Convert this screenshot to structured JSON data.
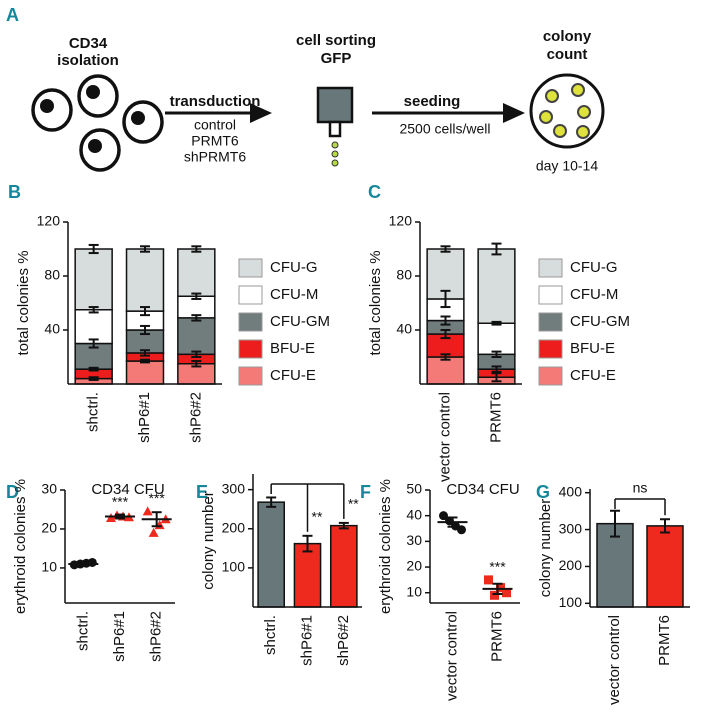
{
  "diagram": {
    "panel": "A",
    "isolation": [
      "CD34",
      "isolation"
    ],
    "transduction": "transduction",
    "conditions": [
      "control",
      "PRMT6",
      "shPRMT6"
    ],
    "sorting": [
      "cell sorting",
      "GFP"
    ],
    "seeding": "seeding",
    "density": "2500 cells/well",
    "count": [
      "colony",
      "count"
    ],
    "duration": "day 10-14"
  },
  "chart_data": [
    {
      "type": "stacked",
      "panel": "B",
      "y_label": "total colonies %",
      "categories": [
        "shctrl.",
        "shP6#1",
        "shP6#2"
      ],
      "ylim": [
        0,
        120
      ],
      "yticks": [
        40,
        80,
        120
      ],
      "series": [
        {
          "name": "CFU-E",
          "color": "#f47a78",
          "values": [
            4,
            17,
            15
          ],
          "errors": [
            1,
            1,
            2
          ]
        },
        {
          "name": "BFU-E",
          "color": "#ee1d1d",
          "values": [
            7,
            6,
            7
          ],
          "errors": [
            1,
            2,
            2
          ]
        },
        {
          "name": "CFU-GM",
          "color": "#717c7d",
          "values": [
            19,
            17,
            27
          ],
          "errors": [
            3,
            3,
            2
          ]
        },
        {
          "name": "CFU-M",
          "color": "#ffffff",
          "values": [
            25,
            14,
            16
          ],
          "errors": [
            2,
            3,
            2
          ]
        },
        {
          "name": "CFU-G",
          "color": "#d6dddc",
          "values": [
            45,
            46,
            35
          ],
          "errors": [
            3,
            2,
            2
          ]
        }
      ]
    },
    {
      "type": "stacked",
      "panel": "C",
      "y_label": "total colonies %",
      "categories": [
        "vector control",
        "PRMT6"
      ],
      "ylim": [
        0,
        120
      ],
      "yticks": [
        40,
        80,
        120
      ],
      "series": [
        {
          "name": "CFU-E",
          "color": "#f47a78",
          "values": [
            20,
            5
          ],
          "errors": [
            2,
            3
          ]
        },
        {
          "name": "BFU-E",
          "color": "#ee1d1d",
          "values": [
            17,
            6
          ],
          "errors": [
            3,
            2
          ]
        },
        {
          "name": "CFU-GM",
          "color": "#717c7d",
          "values": [
            10,
            11
          ],
          "errors": [
            3,
            2
          ]
        },
        {
          "name": "CFU-M",
          "color": "#ffffff",
          "values": [
            16,
            23
          ],
          "errors": [
            6,
            1
          ]
        },
        {
          "name": "CFU-G",
          "color": "#d6dddc",
          "values": [
            37,
            55
          ],
          "errors": [
            2,
            4
          ]
        }
      ]
    },
    {
      "type": "dot",
      "panel": "D",
      "title": "CD34 CFU",
      "y_label": "erythroid colonies %",
      "categories": [
        "shctrl.",
        "shP6#1",
        "shP6#2"
      ],
      "ylim": [
        1,
        30
      ],
      "yticks": [
        10,
        20,
        30
      ],
      "means": [
        11,
        23.2,
        22.5
      ],
      "errors": [
        0.3,
        0.5,
        1.8
      ],
      "points": [
        [
          10.8,
          11,
          11.2,
          11.4
        ],
        [
          22.8,
          23.5,
          23.2,
          23
        ],
        [
          24.5,
          19,
          21,
          22.5
        ]
      ],
      "colors": [
        "#111111",
        "#ee2a1f",
        "#ee2a1f"
      ],
      "markers": [
        "circle",
        "triangle",
        "triangle"
      ],
      "significance": [
        null,
        "***",
        "***"
      ]
    },
    {
      "type": "bar",
      "panel": "E",
      "y_label": "colony number",
      "categories": [
        "shctrl.",
        "shP6#1",
        "shP6#2"
      ],
      "ylim": [
        0,
        340
      ],
      "yticks": [
        100,
        200,
        300
      ],
      "values": [
        268,
        162,
        208
      ],
      "errors": [
        12,
        20,
        7
      ],
      "colors": [
        "#68777a",
        "#ee2a1f",
        "#ee2a1f"
      ],
      "bracket": true,
      "significance": [
        null,
        "**",
        "**"
      ]
    },
    {
      "type": "dot",
      "panel": "F",
      "title": "CD34 CFU",
      "y_label": "erythroid colonies %",
      "categories": [
        "vector control",
        "PRMT6"
      ],
      "ylim": [
        6,
        50
      ],
      "yticks": [
        10,
        20,
        30,
        40,
        50
      ],
      "means": [
        37.5,
        11.5
      ],
      "errors": [
        1.8,
        2
      ],
      "points": [
        [
          40,
          38,
          36,
          34.5
        ],
        [
          15,
          9,
          12,
          10
        ]
      ],
      "colors": [
        "#111111",
        "#ee2a1f"
      ],
      "markers": [
        "circle",
        "square"
      ],
      "significance": [
        null,
        "***"
      ]
    },
    {
      "type": "bar",
      "panel": "G",
      "y_label": "colony number",
      "categories": [
        "vector control",
        "PRMT6"
      ],
      "ylim": [
        90,
        410
      ],
      "yticks": [
        100,
        200,
        300,
        400
      ],
      "values": [
        316,
        310
      ],
      "errors": [
        35,
        18
      ],
      "colors": [
        "#68777a",
        "#ee2a1f"
      ],
      "bracket": true,
      "bracket_label": "ns"
    }
  ]
}
